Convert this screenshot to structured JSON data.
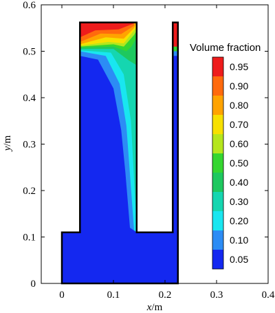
{
  "chart_data": {
    "type": "heatmap",
    "title": "",
    "xlabel": {
      "var": "x",
      "unit": "/m"
    },
    "ylabel": {
      "var": "y",
      "unit": "/m"
    },
    "xlim": [
      -0.04,
      0.4
    ],
    "ylim": [
      0,
      0.6
    ],
    "xticks": [
      "0",
      "0.1",
      "0.2",
      "0.3",
      "0.4"
    ],
    "xtick_values": [
      0,
      0.1,
      0.2,
      0.3,
      0.4
    ],
    "yticks": [
      "0",
      "0.1",
      "0.2",
      "0.3",
      "0.4",
      "0.5",
      "0.6"
    ],
    "ytick_values": [
      0,
      0.1,
      0.2,
      0.3,
      0.4,
      0.5,
      0.6
    ],
    "grid": false,
    "legend": {
      "title": "Volume fraction",
      "placement": "right",
      "levels": [
        {
          "label": "0.95",
          "color": "#ee1c1c"
        },
        {
          "label": "0.90",
          "color": "#ff6a0d"
        },
        {
          "label": "0.80",
          "color": "#ffa300"
        },
        {
          "label": "0.70",
          "color": "#f7e000"
        },
        {
          "label": "0.60",
          "color": "#b5e61d"
        },
        {
          "label": "0.50",
          "color": "#35d630"
        },
        {
          "label": "0.40",
          "color": "#1ec85f"
        },
        {
          "label": "0.30",
          "color": "#15d6b0"
        },
        {
          "label": "0.20",
          "color": "#19e6f0"
        },
        {
          "label": "0.10",
          "color": "#2c8cf5"
        },
        {
          "label": "0.05",
          "color": "#1428f0"
        }
      ]
    },
    "domain_outline": [
      [
        0,
        0
      ],
      [
        0.225,
        0
      ],
      [
        0.225,
        0.562
      ],
      [
        0.215,
        0.562
      ],
      [
        0.215,
        0.11
      ],
      [
        0.145,
        0.11
      ],
      [
        0.145,
        0.562
      ],
      [
        0.035,
        0.562
      ],
      [
        0.035,
        0.11
      ],
      [
        0,
        0.11
      ]
    ],
    "regions": [
      {
        "level": 0.05,
        "polygon": [
          [
            0,
            0
          ],
          [
            0.225,
            0
          ],
          [
            0.225,
            0.562
          ],
          [
            0.215,
            0.562
          ],
          [
            0.215,
            0.11
          ],
          [
            0.145,
            0.11
          ],
          [
            0.145,
            0.562
          ],
          [
            0.035,
            0.562
          ],
          [
            0.035,
            0.11
          ],
          [
            0,
            0.11
          ]
        ]
      },
      {
        "level": 0.1,
        "polygon": [
          [
            0.035,
            0.49
          ],
          [
            0.07,
            0.482
          ],
          [
            0.1,
            0.42
          ],
          [
            0.115,
            0.33
          ],
          [
            0.123,
            0.24
          ],
          [
            0.132,
            0.12
          ],
          [
            0.145,
            0.11
          ],
          [
            0.145,
            0.562
          ],
          [
            0.035,
            0.562
          ]
        ]
      },
      {
        "level": 0.2,
        "polygon": [
          [
            0.035,
            0.5
          ],
          [
            0.085,
            0.49
          ],
          [
            0.112,
            0.43
          ],
          [
            0.125,
            0.34
          ],
          [
            0.133,
            0.22
          ],
          [
            0.14,
            0.115
          ],
          [
            0.145,
            0.11
          ],
          [
            0.145,
            0.562
          ],
          [
            0.035,
            0.562
          ]
        ]
      },
      {
        "level": 0.3,
        "polygon": [
          [
            0.035,
            0.502
          ],
          [
            0.095,
            0.497
          ],
          [
            0.12,
            0.45
          ],
          [
            0.134,
            0.35
          ],
          [
            0.141,
            0.2
          ],
          [
            0.145,
            0.12
          ],
          [
            0.145,
            0.562
          ],
          [
            0.035,
            0.562
          ]
        ]
      },
      {
        "level": 0.4,
        "polygon": [
          [
            0.035,
            0.505
          ],
          [
            0.1,
            0.505
          ],
          [
            0.13,
            0.48
          ],
          [
            0.145,
            0.47
          ],
          [
            0.145,
            0.562
          ],
          [
            0.035,
            0.562
          ]
        ]
      },
      {
        "level": 0.5,
        "polygon": [
          [
            0.035,
            0.508
          ],
          [
            0.1,
            0.51
          ],
          [
            0.125,
            0.5
          ],
          [
            0.135,
            0.51
          ],
          [
            0.145,
            0.53
          ],
          [
            0.145,
            0.562
          ],
          [
            0.035,
            0.562
          ]
        ]
      },
      {
        "level": 0.6,
        "polygon": [
          [
            0.035,
            0.51
          ],
          [
            0.1,
            0.515
          ],
          [
            0.12,
            0.51
          ],
          [
            0.14,
            0.535
          ],
          [
            0.145,
            0.545
          ],
          [
            0.145,
            0.562
          ],
          [
            0.035,
            0.562
          ]
        ]
      },
      {
        "level": 0.7,
        "polygon": [
          [
            0.035,
            0.512
          ],
          [
            0.09,
            0.52
          ],
          [
            0.12,
            0.517
          ],
          [
            0.14,
            0.545
          ],
          [
            0.145,
            0.55
          ],
          [
            0.145,
            0.562
          ],
          [
            0.035,
            0.562
          ]
        ]
      },
      {
        "level": 0.8,
        "polygon": [
          [
            0.035,
            0.515
          ],
          [
            0.085,
            0.53
          ],
          [
            0.12,
            0.527
          ],
          [
            0.14,
            0.55
          ],
          [
            0.145,
            0.562
          ],
          [
            0.035,
            0.562
          ]
        ]
      },
      {
        "level": 0.9,
        "polygon": [
          [
            0.035,
            0.52
          ],
          [
            0.075,
            0.538
          ],
          [
            0.115,
            0.537
          ],
          [
            0.14,
            0.555
          ],
          [
            0.14,
            0.562
          ],
          [
            0.035,
            0.562
          ]
        ]
      },
      {
        "level": 0.95,
        "polygon": [
          [
            0.035,
            0.53
          ],
          [
            0.065,
            0.545
          ],
          [
            0.11,
            0.547
          ],
          [
            0.14,
            0.56
          ],
          [
            0.14,
            0.562
          ],
          [
            0.035,
            0.562
          ]
        ]
      },
      {
        "level": 0.1,
        "polygon": [
          [
            0.215,
            0.49
          ],
          [
            0.225,
            0.49
          ],
          [
            0.225,
            0.562
          ],
          [
            0.215,
            0.562
          ]
        ]
      },
      {
        "level": 0.5,
        "polygon": [
          [
            0.215,
            0.5
          ],
          [
            0.225,
            0.5
          ],
          [
            0.225,
            0.562
          ],
          [
            0.215,
            0.562
          ]
        ]
      },
      {
        "level": 0.95,
        "polygon": [
          [
            0.215,
            0.51
          ],
          [
            0.225,
            0.51
          ],
          [
            0.225,
            0.562
          ],
          [
            0.215,
            0.562
          ]
        ]
      }
    ]
  }
}
